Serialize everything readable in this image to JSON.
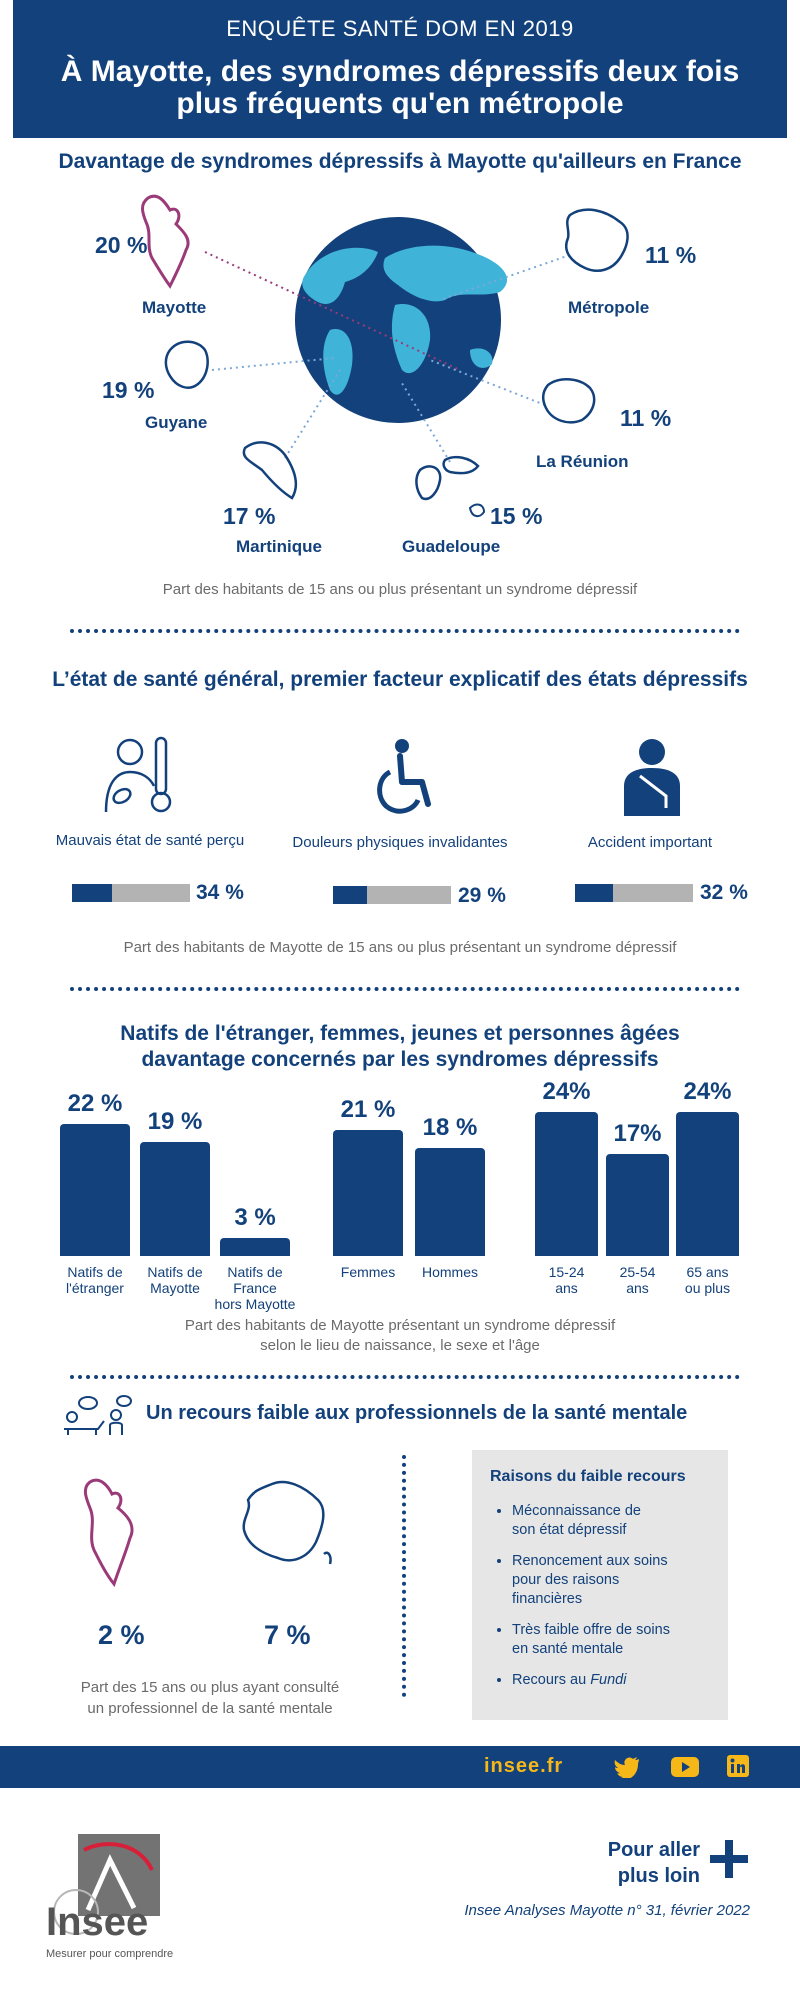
{
  "header": {
    "kicker": "ENQUÊTE SANTÉ DOM EN 2019",
    "title_line1": "À Mayotte, des syndromes dépressifs deux fois",
    "title_line2": "plus fréquents qu'en métropole"
  },
  "section1": {
    "title": "Davantage de syndromes dépressifs à Mayotte qu'ailleurs en France",
    "note": "Part des habitants de 15 ans ou plus présentant un syndrome dépressif",
    "territories": [
      {
        "name": "Mayotte",
        "value": "20 %"
      },
      {
        "name": "Métropole",
        "value": "11 %"
      },
      {
        "name": "Guyane",
        "value": "19 %"
      },
      {
        "name": "La Réunion",
        "value": "11 %"
      },
      {
        "name": "Martinique",
        "value": "17 %"
      },
      {
        "name": "Guadeloupe",
        "value": "15 %"
      }
    ]
  },
  "section2": {
    "title": "L’état de santé général, premier facteur explicatif des états dépressifs",
    "note": "Part des habitants de Mayotte de 15 ans ou plus présentant un syndrome dépressif",
    "factors": [
      {
        "label": "Mauvais état de santé perçu",
        "value": "34 %",
        "icon": "sick-person-thermometer-icon"
      },
      {
        "label": "Douleurs physiques invalidantes",
        "value": "29 %",
        "icon": "wheelchair-icon"
      },
      {
        "label": "Accident important",
        "value": "32 %",
        "icon": "arm-sling-person-icon"
      }
    ]
  },
  "section3": {
    "title_line1": "Natifs de l'étranger, femmes,  jeunes et personnes âgées",
    "title_line2": "davantage concernés par les syndromes dépressifs",
    "note_line1": "Part des habitants de Mayotte présentant un syndrome dépressif",
    "note_line2": "selon le lieu de naissance, le sexe et l'âge",
    "bar_labels": {
      "natifs_etranger": [
        "Natifs de",
        "l'étranger"
      ],
      "natifs_mayotte": [
        "Natifs de",
        "Mayotte"
      ],
      "natifs_france": [
        "Natifs de",
        "France",
        "hors Mayotte"
      ],
      "femmes": [
        "Femmes"
      ],
      "hommes": [
        "Hommes"
      ],
      "age_15_24": [
        "15-24",
        "ans"
      ],
      "age_25_54": [
        "25-54",
        "ans"
      ],
      "age_65": [
        "65 ans",
        "ou plus"
      ]
    },
    "bar_value_labels": {
      "natifs_etranger": "22 %",
      "natifs_mayotte": "19 %",
      "natifs_france": "3 %",
      "femmes": "21 %",
      "hommes": "18 %",
      "age_15_24": "24%",
      "age_25_54": "17%",
      "age_65": "24%"
    }
  },
  "chart_data": [
    {
      "type": "bar",
      "title": "",
      "categories": [
        "Mayotte",
        "Guyane",
        "Martinique",
        "Guadeloupe",
        "Métropole",
        "La Réunion"
      ],
      "values": [
        20,
        19,
        17,
        15,
        11,
        11
      ],
      "unit": "%"
    },
    {
      "type": "bar",
      "categories": [
        "Mauvais état de santé perçu",
        "Douleurs physiques invalidantes",
        "Accident important"
      ],
      "values": [
        34,
        29,
        32
      ],
      "unit": "%"
    },
    {
      "type": "bar",
      "categories": [
        "Natifs de l'étranger",
        "Natifs de Mayotte",
        "Natifs de France hors Mayotte"
      ],
      "values": [
        22,
        19,
        3
      ],
      "unit": "%"
    },
    {
      "type": "bar",
      "categories": [
        "Femmes",
        "Hommes"
      ],
      "values": [
        21,
        18
      ],
      "unit": "%"
    },
    {
      "type": "bar",
      "categories": [
        "15-24 ans",
        "25-54 ans",
        "65 ans ou plus"
      ],
      "values": [
        24,
        17,
        24
      ],
      "unit": "%"
    }
  ],
  "section4": {
    "title": "Un recours faible aux professionnels de la santé mentale",
    "mayotte_value": "2 %",
    "metropole_value": "7 %",
    "note_line1": "Part des 15 ans ou plus ayant consulté",
    "note_line2": "un professionnel de la santé mentale",
    "reasons_title": "Raisons du faible recours",
    "reasons": [
      [
        "Méconnaissance de",
        "son état dépressif"
      ],
      [
        "Renoncement aux soins",
        "pour des raisons",
        "financières"
      ],
      [
        "Très faible offre de soins",
        "en santé mentale"
      ]
    ],
    "reason_last_prefix": "Recours au ",
    "reason_last_italic": "Fundi"
  },
  "footer": {
    "site": "insee.fr",
    "more_line1": "Pour aller",
    "more_line2": "plus loin",
    "publication": "Insee Analyses Mayotte n° 31, février 2022",
    "logo_text": "Insee",
    "logo_tagline": "Mesurer pour comprendre"
  },
  "colors": {
    "navy": "#13417b",
    "grey": "#b3b3b3",
    "mayotte": "#9b3a78",
    "globe_land": "#3fb4d8",
    "accent": "#f5b818"
  }
}
